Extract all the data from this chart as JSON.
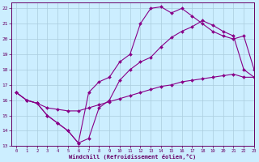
{
  "title": "",
  "xlabel": "Windchill (Refroidissement éolien,°C)",
  "background_color": "#cceeff",
  "grid_color": "#aaccdd",
  "line_color": "#880088",
  "xlim": [
    -0.5,
    23
  ],
  "ylim": [
    13,
    22.4
  ],
  "xticks": [
    0,
    1,
    2,
    3,
    4,
    5,
    6,
    7,
    8,
    9,
    10,
    11,
    12,
    13,
    14,
    15,
    16,
    17,
    18,
    19,
    20,
    21,
    22,
    23
  ],
  "yticks": [
    13,
    14,
    15,
    16,
    17,
    18,
    19,
    20,
    21,
    22
  ],
  "line1_x": [
    0,
    1,
    2,
    3,
    4,
    5,
    6,
    7,
    8,
    9,
    10,
    11,
    12,
    13,
    14,
    15,
    16,
    17,
    18,
    19,
    20,
    21,
    22,
    23
  ],
  "line1_y": [
    16.5,
    16.0,
    15.8,
    15.0,
    14.5,
    14.0,
    13.2,
    13.5,
    15.5,
    16.0,
    17.3,
    18.0,
    18.5,
    18.8,
    19.5,
    20.1,
    20.5,
    20.8,
    21.2,
    20.9,
    20.5,
    20.2,
    18.0,
    17.5
  ],
  "line2_x": [
    0,
    1,
    2,
    3,
    4,
    5,
    6,
    7,
    8,
    9,
    10,
    11,
    12,
    13,
    14,
    15,
    16,
    17,
    18,
    19,
    20,
    21,
    22,
    23
  ],
  "line2_y": [
    16.5,
    16.0,
    15.8,
    15.0,
    14.5,
    14.0,
    13.2,
    16.5,
    17.2,
    17.5,
    18.5,
    19.0,
    21.0,
    22.0,
    22.1,
    21.7,
    22.0,
    21.5,
    21.0,
    20.5,
    20.2,
    20.0,
    20.2,
    18.0
  ],
  "line3_x": [
    0,
    1,
    2,
    3,
    4,
    5,
    6,
    7,
    8,
    9,
    10,
    11,
    12,
    13,
    14,
    15,
    16,
    17,
    18,
    19,
    20,
    21,
    22,
    23
  ],
  "line3_y": [
    16.5,
    16.0,
    15.8,
    15.5,
    15.4,
    15.3,
    15.3,
    15.5,
    15.7,
    15.9,
    16.1,
    16.3,
    16.5,
    16.7,
    16.9,
    17.0,
    17.2,
    17.3,
    17.4,
    17.5,
    17.6,
    17.7,
    17.5,
    17.5
  ]
}
